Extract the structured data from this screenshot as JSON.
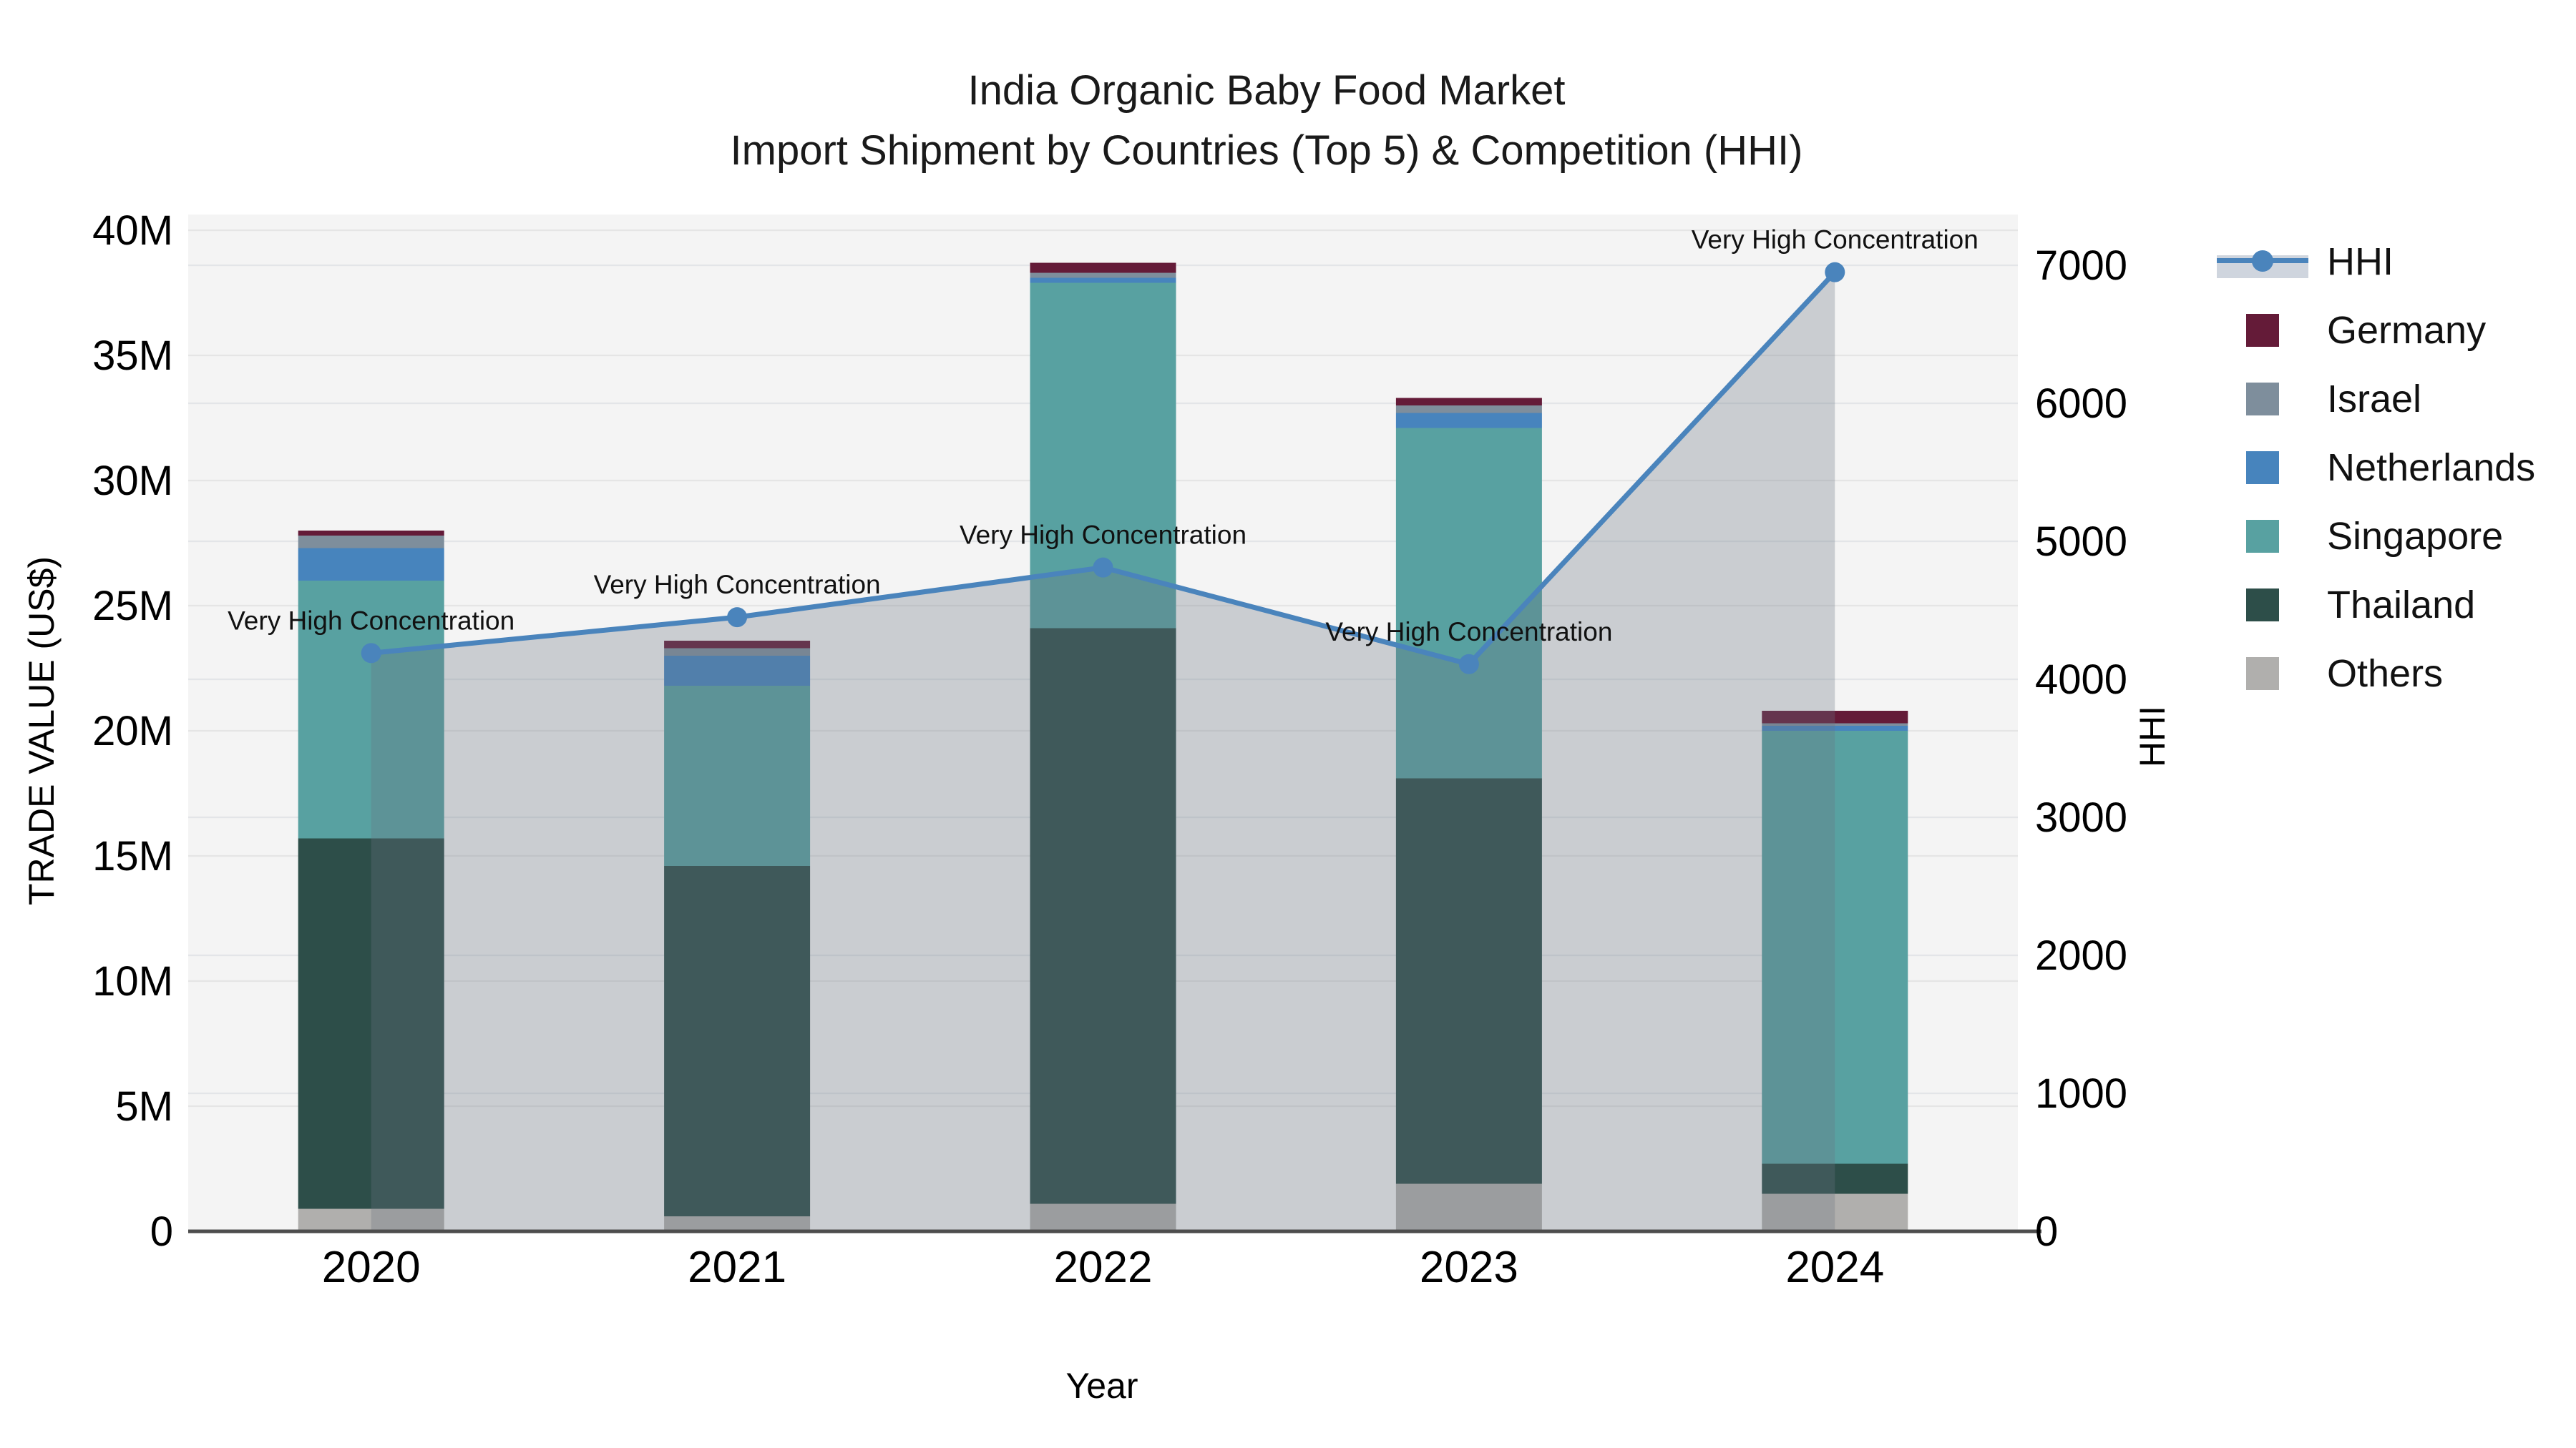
{
  "title": {
    "line1": "India Organic Baby Food Market",
    "line2": "Import Shipment by Countries (Top 5) & Competition (HHI)"
  },
  "axes": {
    "y_left_label": "TRADE VALUE (US$)",
    "y_right_label": "HHI",
    "x_label": "Year",
    "y_left_ticks": [
      "0",
      "5M",
      "10M",
      "15M",
      "20M",
      "25M",
      "30M",
      "35M",
      "40M"
    ],
    "y_right_ticks": [
      "0",
      "1000",
      "2000",
      "3000",
      "4000",
      "5000",
      "6000",
      "7000"
    ],
    "x_ticks": [
      "2020",
      "2021",
      "2022",
      "2023",
      "2024"
    ]
  },
  "legend": {
    "items": [
      {
        "label": "HHI",
        "type": "line",
        "color": "#4a84bc",
        "band_color": "#cfd5de"
      },
      {
        "label": "Germany",
        "type": "patch",
        "color": "#641b38"
      },
      {
        "label": "Israel",
        "type": "patch",
        "color": "#7e8e9c"
      },
      {
        "label": "Netherlands",
        "type": "patch",
        "color": "#4784bd"
      },
      {
        "label": "Singapore",
        "type": "patch",
        "color": "#58a1a1"
      },
      {
        "label": "Thailand",
        "type": "patch",
        "color": "#2d4e49"
      },
      {
        "label": "Others",
        "type": "patch",
        "color": "#b0afad"
      }
    ]
  },
  "chart_data": {
    "type": "bar",
    "subtype": "stacked bars with HHI line on secondary axis",
    "title": "India Organic Baby Food Market — Import Shipment by Countries (Top 5) & Competition (HHI)",
    "categories": [
      "2020",
      "2021",
      "2022",
      "2023",
      "2024"
    ],
    "unit_bars": "US$ millions (trade value)",
    "xlabel": "Year",
    "ylabel_left": "TRADE VALUE (US$)",
    "ylabel_right": "HHI",
    "ylim_left_musd": [
      0,
      40
    ],
    "ylim_right_hhi": [
      0,
      7360
    ],
    "grid": true,
    "legend_position": "right, outside plot",
    "stack_order_bottom_to_top": [
      "Others",
      "Thailand",
      "Singapore",
      "Netherlands",
      "Israel",
      "Germany"
    ],
    "series": [
      {
        "name": "Germany",
        "color": "#641b38",
        "values_musd": [
          0.2,
          0.3,
          0.4,
          0.3,
          0.5
        ]
      },
      {
        "name": "Israel",
        "color": "#7e8e9c",
        "values_musd": [
          0.5,
          0.3,
          0.2,
          0.3,
          0.1
        ]
      },
      {
        "name": "Netherlands",
        "color": "#4784bd",
        "values_musd": [
          1.3,
          1.2,
          0.2,
          0.6,
          0.2
        ]
      },
      {
        "name": "Singapore",
        "color": "#58a1a1",
        "values_musd": [
          10.3,
          7.2,
          13.8,
          14.0,
          17.3
        ]
      },
      {
        "name": "Thailand",
        "color": "#2d4e49",
        "values_musd": [
          14.8,
          14.0,
          23.0,
          16.2,
          1.2
        ]
      },
      {
        "name": "Others",
        "color": "#b0afad",
        "values_musd": [
          0.9,
          0.6,
          1.1,
          1.9,
          1.5
        ]
      }
    ],
    "bar_totals_musd": [
      28.0,
      23.6,
      38.7,
      33.3,
      20.8
    ],
    "line_series": {
      "name": "HHI",
      "color": "#4a84bc",
      "area_fill": "rgba(105,115,130,0.30)",
      "values": [
        4190,
        4450,
        4810,
        4110,
        6950
      ]
    },
    "point_labels": [
      "Very High Concentration",
      "Very High Concentration",
      "Very High Concentration",
      "Very High Concentration",
      "Very High Concentration"
    ]
  }
}
